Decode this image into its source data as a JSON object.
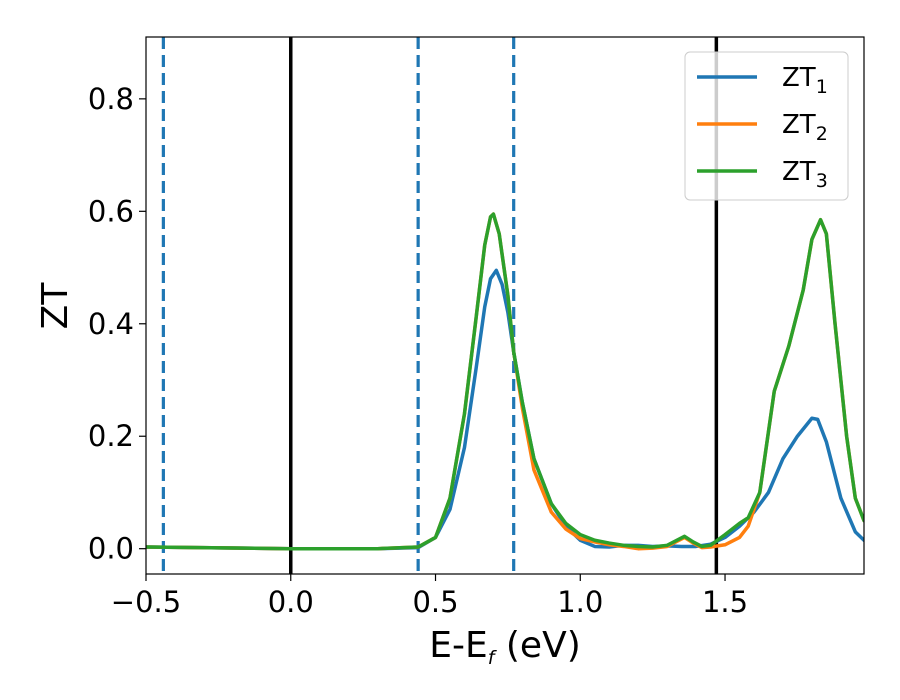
{
  "chart_data": {
    "type": "line",
    "xlabel_main": "E-E",
    "xlabel_sub": "f",
    "xlabel_unit": " (eV)",
    "ylabel": "ZT",
    "xlim": [
      -0.5,
      1.98
    ],
    "ylim": [
      -0.045,
      0.91
    ],
    "xticks": [
      -0.5,
      0.0,
      0.5,
      1.0,
      1.5
    ],
    "xtick_labels": [
      "−0.5",
      "0.0",
      "0.5",
      "1.0",
      "1.5"
    ],
    "yticks": [
      0.0,
      0.2,
      0.4,
      0.6,
      0.8
    ],
    "ytick_labels": [
      "0.0",
      "0.2",
      "0.4",
      "0.6",
      "0.8"
    ],
    "grid": false,
    "legend_position": "top-right",
    "vertical_lines": [
      {
        "x": 0.0,
        "style": "solid",
        "color": "#000000"
      },
      {
        "x": 1.47,
        "style": "solid",
        "color": "#000000"
      },
      {
        "x": -0.44,
        "style": "dashed",
        "color": "#1f77b4"
      },
      {
        "x": 0.44,
        "style": "dashed",
        "color": "#1f77b4"
      },
      {
        "x": 0.77,
        "style": "dashed",
        "color": "#1f77b4"
      }
    ],
    "series": [
      {
        "name": "ZT",
        "subscript": "1",
        "color": "#1f77b4",
        "x": [
          -0.5,
          0.0,
          0.3,
          0.44,
          0.5,
          0.55,
          0.6,
          0.64,
          0.67,
          0.69,
          0.71,
          0.73,
          0.75,
          0.77,
          0.8,
          0.84,
          0.9,
          0.95,
          1.0,
          1.05,
          1.1,
          1.15,
          1.2,
          1.25,
          1.3,
          1.35,
          1.4,
          1.45,
          1.5,
          1.55,
          1.6,
          1.65,
          1.7,
          1.75,
          1.8,
          1.82,
          1.85,
          1.9,
          1.95,
          1.98
        ],
        "y": [
          0.003,
          0.0,
          0.0,
          0.002,
          0.02,
          0.07,
          0.18,
          0.32,
          0.43,
          0.48,
          0.495,
          0.47,
          0.42,
          0.35,
          0.26,
          0.16,
          0.08,
          0.04,
          0.015,
          0.004,
          0.003,
          0.006,
          0.006,
          0.004,
          0.005,
          0.004,
          0.004,
          0.008,
          0.02,
          0.04,
          0.065,
          0.1,
          0.16,
          0.2,
          0.232,
          0.23,
          0.19,
          0.09,
          0.03,
          0.015
        ]
      },
      {
        "name": "ZT",
        "subscript": "2",
        "color": "#ff7f0e",
        "x": [
          -0.5,
          0.0,
          0.3,
          0.44,
          0.5,
          0.55,
          0.6,
          0.64,
          0.67,
          0.69,
          0.7,
          0.72,
          0.75,
          0.77,
          0.8,
          0.84,
          0.9,
          0.95,
          1.0,
          1.05,
          1.1,
          1.15,
          1.2,
          1.25,
          1.3,
          1.33,
          1.36,
          1.39,
          1.42,
          1.45,
          1.5,
          1.55,
          1.58,
          1.62,
          1.67,
          1.72,
          1.77,
          1.8,
          1.83,
          1.85,
          1.88,
          1.92,
          1.95,
          1.98
        ],
        "y": [
          0.003,
          0.0,
          0.0,
          0.003,
          0.02,
          0.09,
          0.24,
          0.41,
          0.54,
          0.59,
          0.595,
          0.56,
          0.45,
          0.35,
          0.25,
          0.14,
          0.065,
          0.035,
          0.018,
          0.012,
          0.007,
          0.004,
          0.0,
          0.001,
          0.004,
          0.012,
          0.02,
          0.01,
          0.002,
          0.003,
          0.007,
          0.02,
          0.04,
          0.1,
          0.28,
          0.36,
          0.46,
          0.55,
          0.585,
          0.56,
          0.4,
          0.2,
          0.09,
          0.05
        ]
      },
      {
        "name": "ZT",
        "subscript": "3",
        "color": "#2ca02c",
        "x": [
          -0.5,
          0.0,
          0.3,
          0.44,
          0.5,
          0.55,
          0.6,
          0.64,
          0.67,
          0.69,
          0.7,
          0.72,
          0.75,
          0.77,
          0.8,
          0.84,
          0.9,
          0.95,
          1.0,
          1.05,
          1.1,
          1.15,
          1.2,
          1.25,
          1.3,
          1.33,
          1.36,
          1.39,
          1.42,
          1.45,
          1.5,
          1.55,
          1.58,
          1.62,
          1.67,
          1.72,
          1.77,
          1.8,
          1.83,
          1.85,
          1.88,
          1.92,
          1.95,
          1.98
        ],
        "y": [
          0.003,
          0.0,
          0.0,
          0.003,
          0.02,
          0.09,
          0.24,
          0.41,
          0.54,
          0.59,
          0.595,
          0.56,
          0.45,
          0.35,
          0.26,
          0.16,
          0.08,
          0.045,
          0.025,
          0.015,
          0.01,
          0.006,
          0.004,
          0.003,
          0.006,
          0.014,
          0.022,
          0.012,
          0.004,
          0.006,
          0.025,
          0.045,
          0.055,
          0.1,
          0.28,
          0.36,
          0.46,
          0.55,
          0.585,
          0.56,
          0.4,
          0.2,
          0.09,
          0.05
        ]
      }
    ]
  }
}
